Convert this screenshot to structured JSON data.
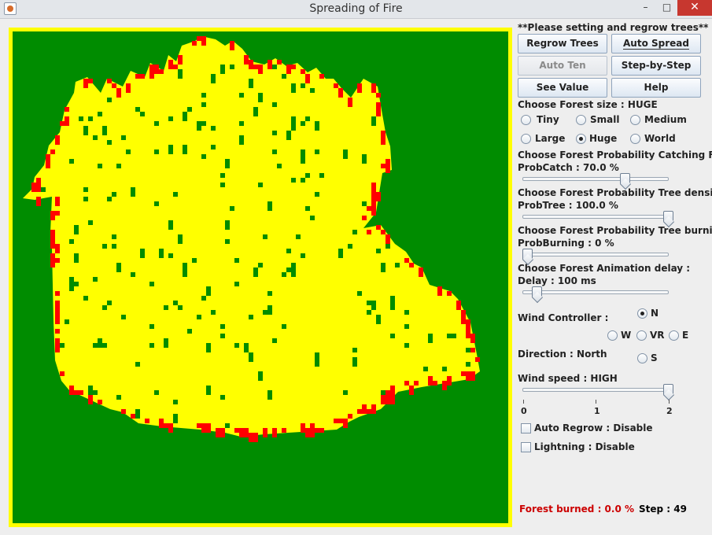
{
  "window": {
    "title": "Spreading of Fire",
    "minimize": "–",
    "maximize": "□",
    "close": "✕"
  },
  "colors": {
    "tree": "#008c00",
    "burnt": "#ffff00",
    "fire": "#ff0000",
    "burned_text": "#cc0000"
  },
  "icons": {
    "app": "java-cup-icon"
  },
  "panel": {
    "notice": "**Please setting and regrow trees**",
    "buttons": {
      "regrow": "Regrow Trees",
      "auto_spread": "Auto Spread",
      "auto_ten": "Auto Ten",
      "step_by_step": "Step-by-Step",
      "see_value": "See Value",
      "help": "Help"
    },
    "forest_size": {
      "label": "Choose Forest size : HUGE",
      "options": [
        "Tiny",
        "Small",
        "Medium",
        "Large",
        "Huge",
        "World"
      ],
      "selected": "Huge"
    },
    "prob_catch": {
      "label": "Choose Forest Probability Catching Fire :",
      "value_text": "ProbCatch : 70.0 %",
      "value": 70.0
    },
    "prob_tree": {
      "label": "Choose Forest Probability Tree density :",
      "value_text": "ProbTree : 100.0 %",
      "value": 100.0
    },
    "prob_burning": {
      "label": "Choose Forest Probability Tree burning :",
      "value_text": "ProbBurning : 0 %",
      "value": 0
    },
    "delay": {
      "label": "Choose Forest Animation delay :",
      "value_text": "Delay : 100 ms",
      "value": 100
    },
    "wind": {
      "label": "Wind Controller :",
      "n": "N",
      "w": "W",
      "vr": "VR",
      "e": "E",
      "s": "S",
      "selected": "N",
      "direction_text": "Direction : North"
    },
    "wind_speed": {
      "label": "Wind speed : HIGH",
      "value": 2,
      "ticks": [
        "0",
        "1",
        "2"
      ]
    },
    "auto_regrow": "Auto Regrow : Disable",
    "lightning": "Lightning : Disable",
    "forest_burned": "Forest burned : 0.0 %",
    "step": "Step : 49"
  }
}
